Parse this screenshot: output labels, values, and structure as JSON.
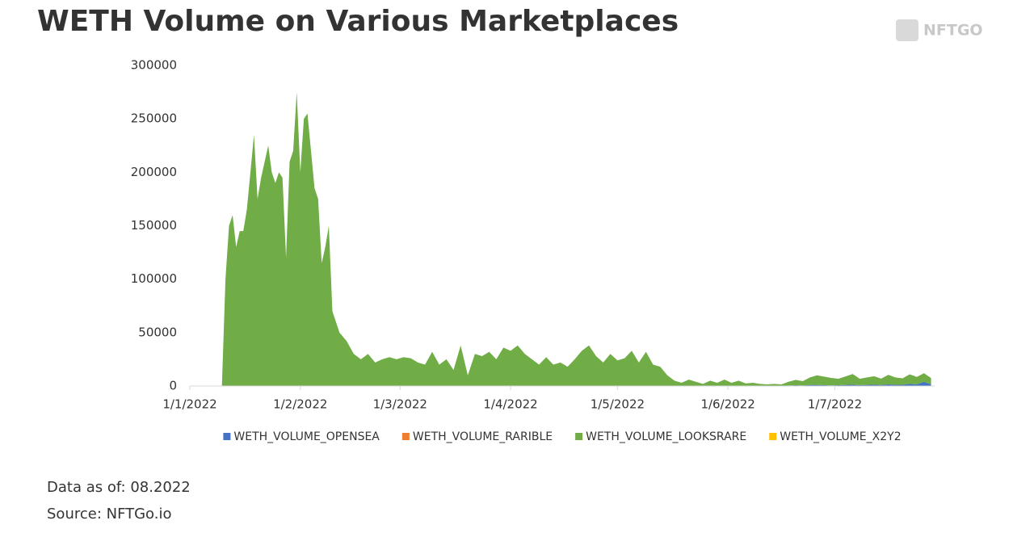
{
  "brand": "NFTGO",
  "notes": [
    "Data as of: 08.2022",
    "Source: NFTGo.io"
  ],
  "chart_data": {
    "type": "area",
    "stacked": true,
    "title": "WETH Volume on Various Marketplaces",
    "x": [
      "2022-01-10",
      "2022-01-11",
      "2022-01-12",
      "2022-01-13",
      "2022-01-14",
      "2022-01-15",
      "2022-01-16",
      "2022-01-17",
      "2022-01-18",
      "2022-01-19",
      "2022-01-20",
      "2022-01-21",
      "2022-01-22",
      "2022-01-23",
      "2022-01-24",
      "2022-01-25",
      "2022-01-26",
      "2022-01-27",
      "2022-01-28",
      "2022-01-29",
      "2022-01-30",
      "2022-01-31",
      "2022-02-01",
      "2022-02-02",
      "2022-02-03",
      "2022-02-04",
      "2022-02-05",
      "2022-02-06",
      "2022-02-07",
      "2022-02-08",
      "2022-02-09",
      "2022-02-10",
      "2022-02-12",
      "2022-02-14",
      "2022-02-16",
      "2022-02-18",
      "2022-02-20",
      "2022-02-22",
      "2022-02-24",
      "2022-02-26",
      "2022-02-28",
      "2022-03-02",
      "2022-03-04",
      "2022-03-06",
      "2022-03-08",
      "2022-03-10",
      "2022-03-12",
      "2022-03-14",
      "2022-03-16",
      "2022-03-18",
      "2022-03-20",
      "2022-03-22",
      "2022-03-24",
      "2022-03-26",
      "2022-03-28",
      "2022-03-30",
      "2022-04-01",
      "2022-04-03",
      "2022-04-05",
      "2022-04-07",
      "2022-04-09",
      "2022-04-11",
      "2022-04-13",
      "2022-04-15",
      "2022-04-17",
      "2022-04-19",
      "2022-04-21",
      "2022-04-23",
      "2022-04-25",
      "2022-04-27",
      "2022-04-29",
      "2022-05-01",
      "2022-05-03",
      "2022-05-05",
      "2022-05-07",
      "2022-05-09",
      "2022-05-11",
      "2022-05-13",
      "2022-05-15",
      "2022-05-17",
      "2022-05-19",
      "2022-05-21",
      "2022-05-23",
      "2022-05-25",
      "2022-05-27",
      "2022-05-29",
      "2022-05-31",
      "2022-06-02",
      "2022-06-04",
      "2022-06-06",
      "2022-06-08",
      "2022-06-10",
      "2022-06-12",
      "2022-06-14",
      "2022-06-16",
      "2022-06-18",
      "2022-06-20",
      "2022-06-22",
      "2022-06-24",
      "2022-06-26",
      "2022-06-28",
      "2022-06-30",
      "2022-07-02",
      "2022-07-04",
      "2022-07-06",
      "2022-07-08",
      "2022-07-10",
      "2022-07-12",
      "2022-07-14",
      "2022-07-16",
      "2022-07-18",
      "2022-07-20",
      "2022-07-22",
      "2022-07-24",
      "2022-07-26",
      "2022-07-28"
    ],
    "xlim": [
      "2022-01-01",
      "2022-07-29"
    ],
    "xticks": [
      {
        "value": "2022-01-01",
        "label": "1/1/2022"
      },
      {
        "value": "2022-02-01",
        "label": "1/2/2022"
      },
      {
        "value": "2022-03-01",
        "label": "1/3/2022"
      },
      {
        "value": "2022-04-01",
        "label": "1/4/2022"
      },
      {
        "value": "2022-05-01",
        "label": "1/5/2022"
      },
      {
        "value": "2022-06-01",
        "label": "1/6/2022"
      },
      {
        "value": "2022-07-01",
        "label": "1/7/2022"
      }
    ],
    "ylim": [
      0,
      300000
    ],
    "yticks": [
      0,
      50000,
      100000,
      150000,
      200000,
      250000,
      300000
    ],
    "legend": "bottom",
    "series": [
      {
        "name": "WETH_VOLUME_OPENSEA",
        "color": "#4472c4",
        "values": [
          0,
          0,
          0,
          0,
          0,
          0,
          0,
          0,
          0,
          0,
          0,
          0,
          0,
          0,
          0,
          0,
          0,
          0,
          0,
          0,
          0,
          0,
          0,
          0,
          0,
          0,
          0,
          0,
          0,
          0,
          0,
          0,
          0,
          0,
          0,
          0,
          0,
          0,
          0,
          0,
          0,
          0,
          0,
          0,
          0,
          0,
          0,
          0,
          0,
          0,
          0,
          0,
          0,
          0,
          0,
          0,
          0,
          0,
          0,
          0,
          0,
          0,
          0,
          0,
          0,
          0,
          0,
          0,
          0,
          0,
          0,
          0,
          0,
          0,
          0,
          0,
          0,
          0,
          0,
          0,
          0,
          0,
          0,
          0,
          0,
          0,
          0,
          0,
          0,
          0,
          0,
          0,
          0,
          0,
          0,
          500,
          800,
          500,
          1000,
          1000,
          800,
          600,
          800,
          1000,
          1200,
          800,
          1000,
          1200,
          900,
          1500,
          1000,
          1200,
          2000,
          1500,
          4000,
          1500
        ]
      },
      {
        "name": "WETH_VOLUME_RARIBLE",
        "color": "#ed7d31",
        "values": [
          0,
          0,
          0,
          0,
          0,
          0,
          0,
          0,
          0,
          0,
          0,
          0,
          0,
          0,
          0,
          0,
          0,
          0,
          0,
          0,
          0,
          0,
          0,
          0,
          0,
          0,
          0,
          0,
          0,
          0,
          0,
          0,
          0,
          0,
          0,
          0,
          0,
          0,
          0,
          0,
          0,
          0,
          0,
          0,
          0,
          0,
          0,
          0,
          0,
          0,
          0,
          0,
          0,
          0,
          0,
          0,
          0,
          0,
          0,
          0,
          0,
          0,
          0,
          0,
          0,
          0,
          0,
          0,
          0,
          0,
          0,
          0,
          0,
          0,
          0,
          0,
          0,
          0,
          0,
          0,
          0,
          0,
          0,
          0,
          0,
          0,
          0,
          0,
          0,
          0,
          0,
          0,
          0,
          0,
          0,
          0,
          0,
          0,
          0,
          0,
          0,
          0,
          0,
          0,
          0,
          0,
          0,
          0,
          0,
          0,
          0,
          0,
          0,
          0,
          0,
          0
        ]
      },
      {
        "name": "WETH_VOLUME_LOOKSRARE",
        "color": "#70ad47",
        "values": [
          0,
          100000,
          150000,
          160000,
          130000,
          145000,
          145000,
          165000,
          200000,
          235000,
          175000,
          195000,
          210000,
          225000,
          200000,
          190000,
          200000,
          195000,
          120000,
          210000,
          220000,
          275000,
          200000,
          250000,
          255000,
          220000,
          185000,
          175000,
          115000,
          130000,
          150000,
          70000,
          50000,
          42000,
          30000,
          25000,
          30000,
          22000,
          25000,
          27000,
          25000,
          27000,
          26000,
          22000,
          20000,
          32000,
          20000,
          25000,
          15000,
          38000,
          10000,
          30000,
          28000,
          32000,
          25000,
          36000,
          33000,
          38000,
          30000,
          25000,
          20000,
          27000,
          20000,
          22000,
          18000,
          25000,
          33000,
          38000,
          28000,
          22000,
          30000,
          24000,
          26000,
          33000,
          22000,
          32000,
          20000,
          18000,
          10000,
          5000,
          3000,
          6000,
          4000,
          2000,
          5000,
          3000,
          6000,
          3000,
          5000,
          2500,
          3000,
          2000,
          1500,
          2000,
          1500,
          3500,
          5000,
          4000,
          7000,
          9000,
          8000,
          7000,
          6000,
          8000,
          10000,
          6000,
          7000,
          8000,
          6000,
          9000,
          7000,
          6000,
          9000,
          7000,
          8000,
          6000
        ]
      },
      {
        "name": "WETH_VOLUME_X2Y2",
        "color": "#ffc000",
        "values": [
          0,
          0,
          0,
          0,
          0,
          0,
          0,
          0,
          0,
          0,
          0,
          0,
          0,
          0,
          0,
          0,
          0,
          0,
          0,
          0,
          0,
          0,
          0,
          0,
          0,
          0,
          0,
          0,
          0,
          0,
          0,
          0,
          0,
          0,
          0,
          0,
          0,
          0,
          0,
          0,
          0,
          0,
          0,
          0,
          0,
          0,
          0,
          0,
          0,
          0,
          0,
          0,
          0,
          0,
          0,
          0,
          0,
          0,
          0,
          0,
          0,
          0,
          0,
          0,
          0,
          0,
          0,
          0,
          0,
          0,
          0,
          0,
          0,
          0,
          0,
          0,
          0,
          0,
          0,
          0,
          0,
          0,
          0,
          0,
          0,
          0,
          0,
          0,
          0,
          0,
          0,
          0,
          0,
          0,
          0,
          0,
          0,
          0,
          0,
          0,
          0,
          0,
          0,
          0,
          0,
          0,
          0,
          0,
          0,
          0,
          0,
          0,
          0,
          0,
          0,
          0
        ]
      }
    ]
  }
}
